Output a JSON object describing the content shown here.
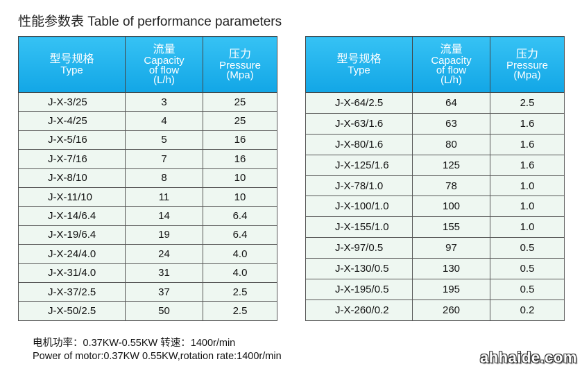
{
  "header": {
    "title": "性能参数表 Table of performance parameters"
  },
  "tables": [
    {
      "columns": [
        [
          "型号规格",
          "Type"
        ],
        [
          "流量",
          "Capacity",
          "of flow",
          "(L/h)"
        ],
        [
          "压力",
          "Pressure",
          "(Mpa)"
        ]
      ],
      "rows": [
        [
          "J-X-3/25",
          "3",
          "25"
        ],
        [
          "J-X-4/25",
          "4",
          "25"
        ],
        [
          "J-X-5/16",
          "5",
          "16"
        ],
        [
          "J-X-7/16",
          "7",
          "16"
        ],
        [
          "J-X-8/10",
          "8",
          "10"
        ],
        [
          "J-X-11/10",
          "11",
          "10"
        ],
        [
          "J-X-14/6.4",
          "14",
          "6.4"
        ],
        [
          "J-X-19/6.4",
          "19",
          "6.4"
        ],
        [
          "J-X-24/4.0",
          "24",
          "4.0"
        ],
        [
          "J-X-31/4.0",
          "31",
          "4.0"
        ],
        [
          "J-X-37/2.5",
          "37",
          "2.5"
        ],
        [
          "J-X-50/2.5",
          "50",
          "2.5"
        ]
      ]
    },
    {
      "columns": [
        [
          "型号规格",
          "Type"
        ],
        [
          "流量",
          "Capacity",
          "of flow",
          "(L/h)"
        ],
        [
          "压力",
          "Pressure",
          "(Mpa)"
        ]
      ],
      "rows": [
        [
          "J-X-64/2.5",
          "64",
          "2.5"
        ],
        [
          "J-X-63/1.6",
          "63",
          "1.6"
        ],
        [
          "J-X-80/1.6",
          "80",
          "1.6"
        ],
        [
          "J-X-125/1.6",
          "125",
          "1.6"
        ],
        [
          "J-X-78/1.0",
          "78",
          "1.0"
        ],
        [
          "J-X-100/1.0",
          "100",
          "1.0"
        ],
        [
          "J-X-155/1.0",
          "155",
          "1.0"
        ],
        [
          "J-X-97/0.5",
          "97",
          "0.5"
        ],
        [
          "J-X-130/0.5",
          "130",
          "0.5"
        ],
        [
          "J-X-195/0.5",
          "195",
          "0.5"
        ],
        [
          "J-X-260/0.2",
          "260",
          "0.2"
        ]
      ]
    }
  ],
  "footer": {
    "lines": [
      "电机功率：0.37KW-0.55KW  转速：1400r/min",
      "Power of motor:0.37KW 0.55KW,rotation rate:1400r/min"
    ],
    "watermark": "ahhaide.com"
  }
}
